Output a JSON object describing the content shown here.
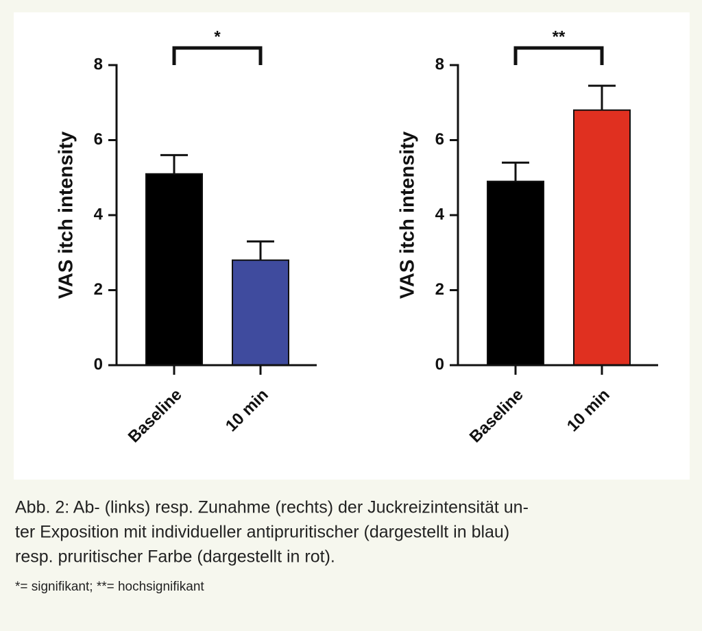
{
  "chart_data": [
    {
      "type": "bar",
      "ylabel": "VAS itch intensity",
      "categories": [
        "Baseline",
        "10 min"
      ],
      "values": [
        5.1,
        2.8
      ],
      "errors": [
        0.5,
        0.5
      ],
      "colors": [
        "#000000",
        "#3f4b9e"
      ],
      "ylim": [
        0,
        8
      ],
      "yticks": [
        0,
        2,
        4,
        6,
        8
      ],
      "annotation": "*"
    },
    {
      "type": "bar",
      "ylabel": "VAS itch intensity",
      "categories": [
        "Baseline",
        "10 min"
      ],
      "values": [
        4.9,
        6.8
      ],
      "errors": [
        0.5,
        0.65
      ],
      "colors": [
        "#000000",
        "#e03020"
      ],
      "ylim": [
        0,
        8
      ],
      "yticks": [
        0,
        2,
        4,
        6,
        8
      ],
      "annotation": "**"
    }
  ],
  "caption": {
    "lines": [
      "Abb. 2: Ab- (links) resp. Zunahme (rechts) der Juckreizintensität un-",
      "ter Exposition mit individueller antipruritischer (dargestellt in blau)",
      "resp. pruritischer Farbe (dargestellt in rot)."
    ],
    "note": "*= signifikant; **= hochsignifikant"
  }
}
